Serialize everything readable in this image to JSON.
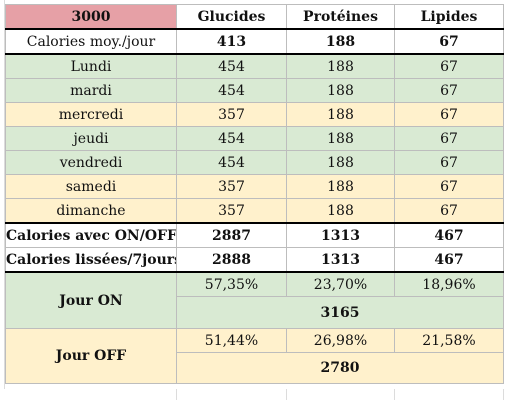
{
  "header": {
    "goal": "3000",
    "col_glucides": "Glucides",
    "col_proteines": "Protéines",
    "col_lipides": "Lipides"
  },
  "avg_row": {
    "label": "Calories moy./jour",
    "glucides": "413",
    "proteines": "188",
    "lipides": "67"
  },
  "days": [
    {
      "label": "Lundi",
      "glucides": "454",
      "proteines": "188",
      "lipides": "67",
      "type": "on"
    },
    {
      "label": "mardi",
      "glucides": "454",
      "proteines": "188",
      "lipides": "67",
      "type": "on"
    },
    {
      "label": "mercredi",
      "glucides": "357",
      "proteines": "188",
      "lipides": "67",
      "type": "off"
    },
    {
      "label": "jeudi",
      "glucides": "454",
      "proteines": "188",
      "lipides": "67",
      "type": "on"
    },
    {
      "label": "vendredi",
      "glucides": "454",
      "proteines": "188",
      "lipides": "67",
      "type": "on"
    },
    {
      "label": "samedi",
      "glucides": "357",
      "proteines": "188",
      "lipides": "67",
      "type": "off"
    },
    {
      "label": "dimanche",
      "glucides": "357",
      "proteines": "188",
      "lipides": "67",
      "type": "off"
    }
  ],
  "onoff_row": {
    "label": "Calories avec ON/OFF",
    "glucides": "2887",
    "proteines": "1313",
    "lipides": "467"
  },
  "smoothed_row": {
    "label": "Calories lissées/7jours",
    "glucides": "2888",
    "proteines": "1313",
    "lipides": "467"
  },
  "jour_on": {
    "label": "Jour ON",
    "glucides_pct": "57,35%",
    "proteines_pct": "23,70%",
    "lipides_pct": "18,96%",
    "total": "3165"
  },
  "jour_off": {
    "label": "Jour OFF",
    "glucides_pct": "51,44%",
    "proteines_pct": "26,98%",
    "lipides_pct": "21,58%",
    "total": "2780"
  },
  "colors": {
    "goal_bg": "#e6a0a6",
    "on_bg": "#d9ead3",
    "off_bg": "#fff1cc"
  }
}
